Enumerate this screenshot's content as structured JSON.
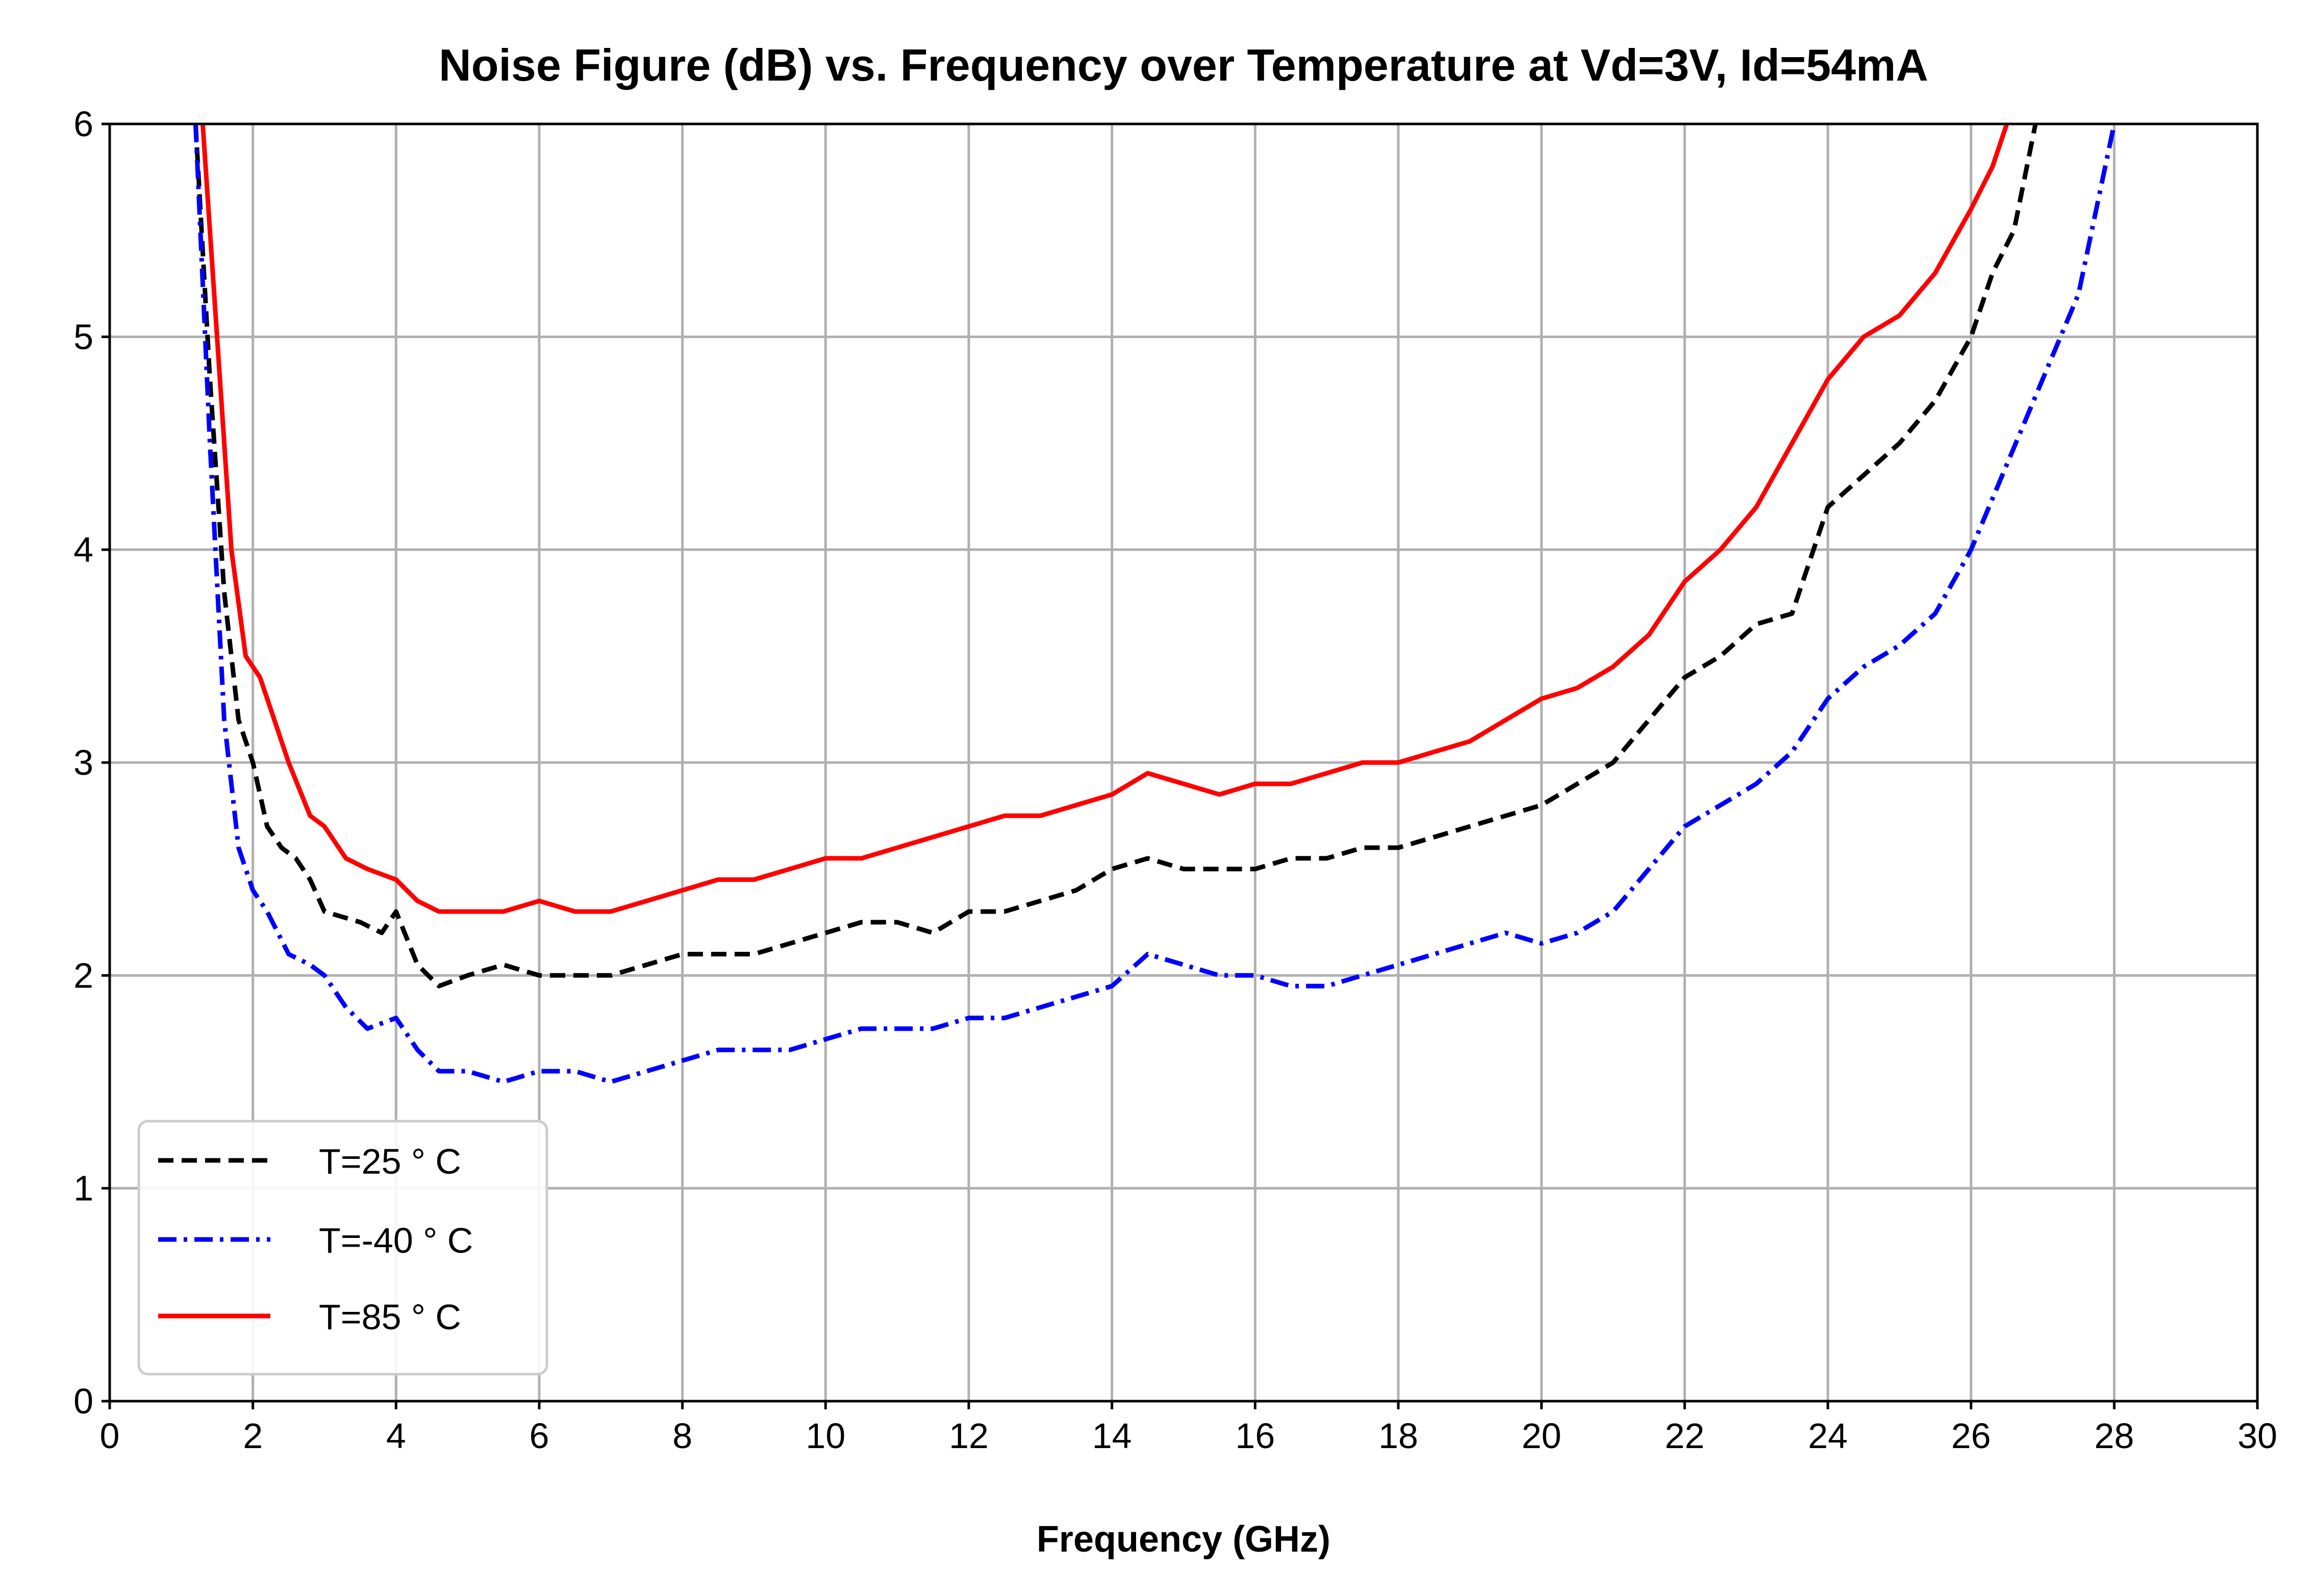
{
  "chart_data": {
    "type": "line",
    "title": "Noise Figure (dB) vs. Frequency over Temperature at Vd=3V, Id=54mA",
    "xlabel": "Frequency (GHz)",
    "ylabel": "",
    "xlim": [
      0,
      30
    ],
    "ylim": [
      0,
      6
    ],
    "xticks": [
      "0",
      "2",
      "4",
      "6",
      "8",
      "10",
      "12",
      "14",
      "16",
      "18",
      "20",
      "22",
      "24",
      "26",
      "28",
      "30"
    ],
    "yticks": [
      "0",
      "1",
      "2",
      "3",
      "4",
      "5",
      "6"
    ],
    "grid": true,
    "legend_position": "lower-left",
    "series": [
      {
        "name": "T=25 ° C",
        "color": "#000000",
        "style": "dashed",
        "x": [
          1.2,
          1.4,
          1.6,
          1.8,
          2.0,
          2.2,
          2.4,
          2.6,
          2.8,
          3.0,
          3.2,
          3.5,
          3.8,
          4.0,
          4.3,
          4.6,
          5.0,
          5.5,
          6.0,
          6.5,
          7.0,
          7.5,
          8.0,
          8.5,
          9.0,
          9.5,
          10.0,
          10.5,
          11.0,
          11.5,
          12.0,
          12.5,
          13.0,
          13.5,
          14.0,
          14.5,
          15.0,
          15.5,
          16.0,
          16.5,
          17.0,
          17.5,
          18.0,
          18.5,
          19.0,
          19.5,
          20.0,
          20.5,
          21.0,
          21.5,
          22.0,
          22.5,
          23.0,
          23.5,
          24.0,
          24.5,
          25.0,
          25.5,
          26.0,
          26.3,
          26.6,
          26.9
        ],
        "y": [
          6.0,
          4.8,
          3.8,
          3.2,
          3.0,
          2.7,
          2.6,
          2.55,
          2.45,
          2.3,
          2.28,
          2.25,
          2.2,
          2.3,
          2.05,
          1.95,
          2.0,
          2.05,
          2.0,
          2.0,
          2.0,
          2.05,
          2.1,
          2.1,
          2.1,
          2.15,
          2.2,
          2.25,
          2.25,
          2.2,
          2.3,
          2.3,
          2.35,
          2.4,
          2.5,
          2.55,
          2.5,
          2.5,
          2.5,
          2.55,
          2.55,
          2.6,
          2.6,
          2.65,
          2.7,
          2.75,
          2.8,
          2.9,
          3.0,
          3.2,
          3.4,
          3.5,
          3.65,
          3.7,
          4.2,
          4.35,
          4.5,
          4.7,
          5.0,
          5.3,
          5.5,
          6.0
        ]
      },
      {
        "name": "T=-40 ° C",
        "color": "#0000ff",
        "style": "dashdot",
        "x": [
          1.2,
          1.4,
          1.6,
          1.8,
          2.0,
          2.2,
          2.5,
          2.8,
          3.0,
          3.3,
          3.6,
          4.0,
          4.3,
          4.6,
          5.0,
          5.5,
          6.0,
          6.5,
          7.0,
          7.5,
          8.0,
          8.5,
          9.0,
          9.5,
          10.0,
          10.5,
          11.0,
          11.5,
          12.0,
          12.5,
          13.0,
          13.5,
          14.0,
          14.5,
          15.0,
          15.5,
          16.0,
          16.5,
          17.0,
          17.5,
          18.0,
          18.5,
          19.0,
          19.5,
          20.0,
          20.5,
          21.0,
          21.5,
          22.0,
          22.5,
          23.0,
          23.5,
          24.0,
          24.5,
          25.0,
          25.5,
          26.0,
          26.5,
          27.0,
          27.5,
          28.0
        ],
        "y": [
          6.0,
          4.5,
          3.2,
          2.6,
          2.4,
          2.3,
          2.1,
          2.05,
          2.0,
          1.85,
          1.75,
          1.8,
          1.65,
          1.55,
          1.55,
          1.5,
          1.55,
          1.55,
          1.5,
          1.55,
          1.6,
          1.65,
          1.65,
          1.65,
          1.7,
          1.75,
          1.75,
          1.75,
          1.8,
          1.8,
          1.85,
          1.9,
          1.95,
          2.1,
          2.05,
          2.0,
          2.0,
          1.95,
          1.95,
          2.0,
          2.05,
          2.1,
          2.15,
          2.2,
          2.15,
          2.2,
          2.3,
          2.5,
          2.7,
          2.8,
          2.9,
          3.05,
          3.3,
          3.45,
          3.55,
          3.7,
          4.0,
          4.4,
          4.8,
          5.2,
          6.0
        ]
      },
      {
        "name": "T=85 ° C",
        "color": "#ff0000",
        "style": "solid",
        "x": [
          1.3,
          1.5,
          1.7,
          1.9,
          2.1,
          2.3,
          2.5,
          2.8,
          3.0,
          3.3,
          3.6,
          4.0,
          4.3,
          4.6,
          5.0,
          5.5,
          6.0,
          6.5,
          7.0,
          7.5,
          8.0,
          8.5,
          9.0,
          9.5,
          10.0,
          10.5,
          11.0,
          11.5,
          12.0,
          12.5,
          13.0,
          13.5,
          14.0,
          14.5,
          15.0,
          15.5,
          16.0,
          16.5,
          17.0,
          17.5,
          18.0,
          18.5,
          19.0,
          19.5,
          20.0,
          20.5,
          21.0,
          21.5,
          22.0,
          22.5,
          23.0,
          23.5,
          24.0,
          24.5,
          25.0,
          25.5,
          26.0,
          26.3,
          26.5
        ],
        "y": [
          6.0,
          5.0,
          4.0,
          3.5,
          3.4,
          3.2,
          3.0,
          2.75,
          2.7,
          2.55,
          2.5,
          2.45,
          2.35,
          2.3,
          2.3,
          2.3,
          2.35,
          2.3,
          2.3,
          2.35,
          2.4,
          2.45,
          2.45,
          2.5,
          2.55,
          2.55,
          2.6,
          2.65,
          2.7,
          2.75,
          2.75,
          2.8,
          2.85,
          2.95,
          2.9,
          2.85,
          2.9,
          2.9,
          2.95,
          3.0,
          3.0,
          3.05,
          3.1,
          3.2,
          3.3,
          3.35,
          3.45,
          3.6,
          3.85,
          4.0,
          4.2,
          4.5,
          4.8,
          5.0,
          5.1,
          5.3,
          5.6,
          5.8,
          6.0
        ]
      }
    ]
  }
}
